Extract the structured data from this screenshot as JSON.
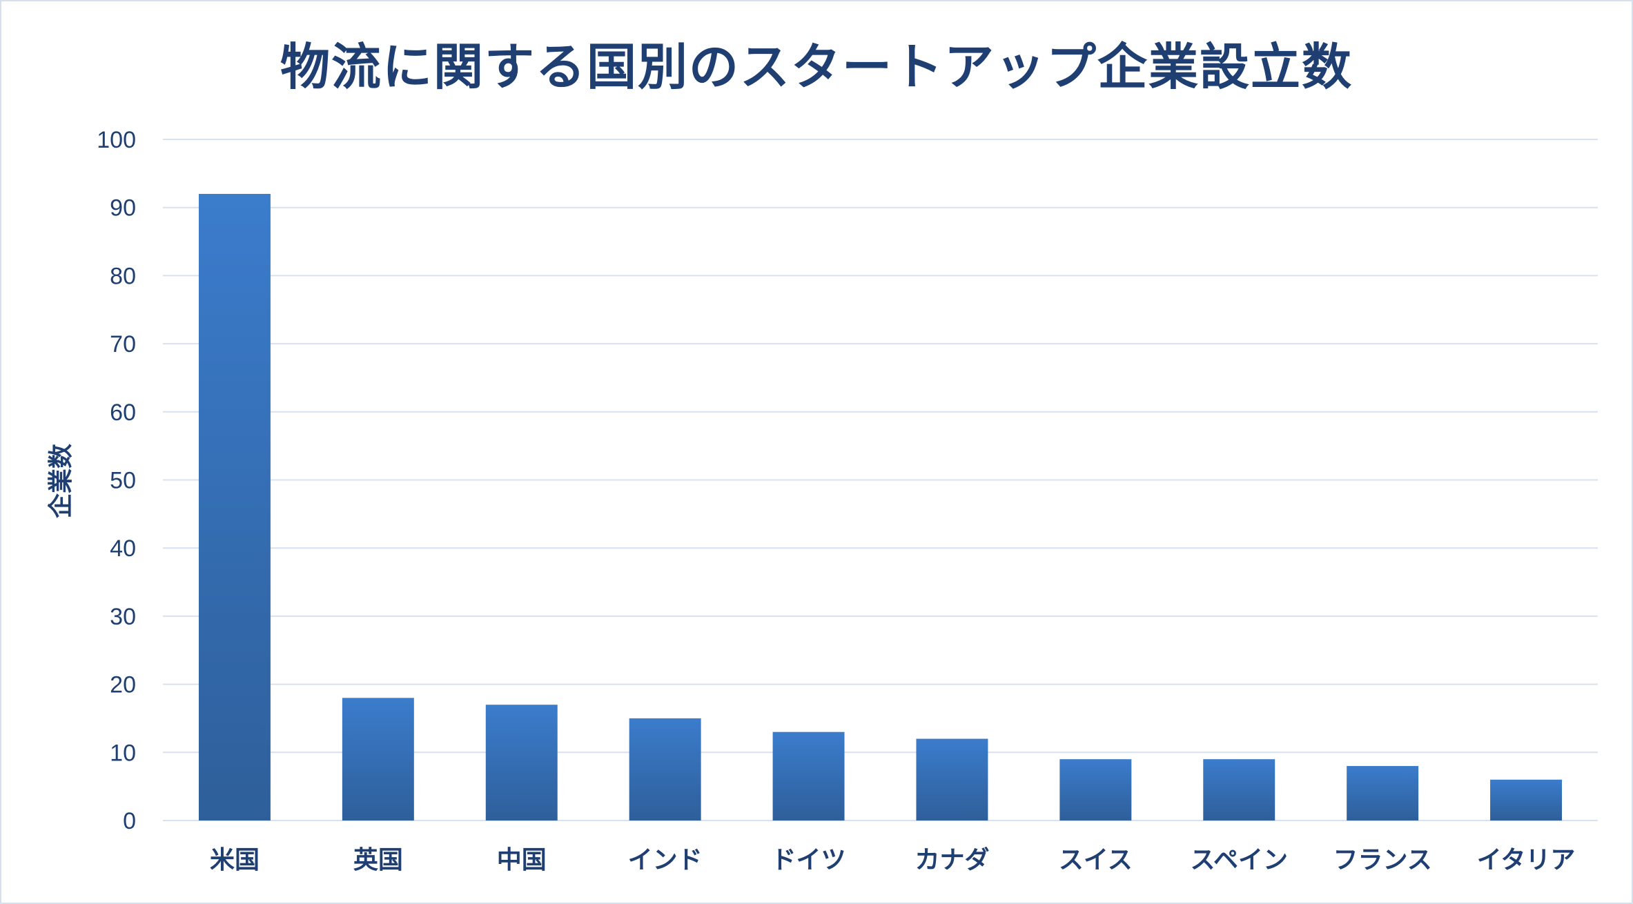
{
  "chart_data": {
    "type": "bar",
    "title": "物流に関する国別のスタートアップ企業設立数",
    "xlabel": "",
    "ylabel": "企業数",
    "categories": [
      "米国",
      "英国",
      "中国",
      "インド",
      "ドイツ",
      "カナダ",
      "スイス",
      "スペイン",
      "フランス",
      "イタリア"
    ],
    "values": [
      92,
      18,
      17,
      15,
      13,
      12,
      9,
      9,
      8,
      6
    ],
    "ylim": [
      0,
      100
    ],
    "yticks": [
      0,
      10,
      20,
      30,
      40,
      50,
      60,
      70,
      80,
      90,
      100
    ],
    "grid": true,
    "legend": "none",
    "colors": {
      "bar_top": "#3b7ccc",
      "bar_bottom": "#2e5f9a",
      "grid": "#d6e2ef",
      "text": "#1f3f73"
    }
  }
}
